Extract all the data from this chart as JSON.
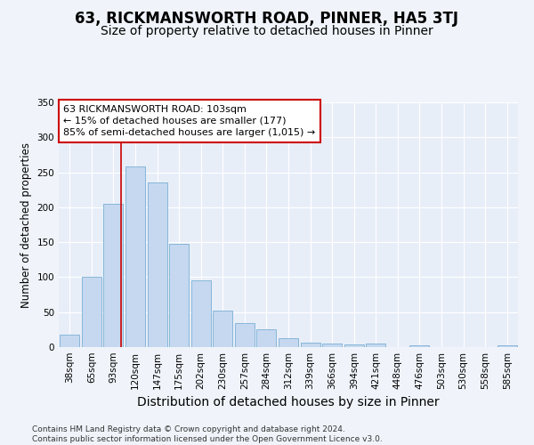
{
  "title": "63, RICKMANSWORTH ROAD, PINNER, HA5 3TJ",
  "subtitle": "Size of property relative to detached houses in Pinner",
  "xlabel": "Distribution of detached houses by size in Pinner",
  "ylabel": "Number of detached properties",
  "categories": [
    "38sqm",
    "65sqm",
    "93sqm",
    "120sqm",
    "147sqm",
    "175sqm",
    "202sqm",
    "230sqm",
    "257sqm",
    "284sqm",
    "312sqm",
    "339sqm",
    "366sqm",
    "394sqm",
    "421sqm",
    "448sqm",
    "476sqm",
    "503sqm",
    "530sqm",
    "558sqm",
    "585sqm"
  ],
  "values": [
    18,
    100,
    205,
    258,
    235,
    148,
    95,
    52,
    35,
    25,
    13,
    7,
    5,
    4,
    5,
    0,
    2,
    0,
    0,
    0,
    2
  ],
  "bar_color": "#c5d8f0",
  "bar_edge_color": "#7aafd4",
  "vline_x_index": 2,
  "vline_color": "#cc0000",
  "annotation_text": "63 RICKMANSWORTH ROAD: 103sqm\n← 15% of detached houses are smaller (177)\n85% of semi-detached houses are larger (1,015) →",
  "annotation_box_color": "#ffffff",
  "annotation_box_edge_color": "#cc0000",
  "ylim": [
    0,
    350
  ],
  "yticks": [
    0,
    50,
    100,
    150,
    200,
    250,
    300,
    350
  ],
  "background_color": "#f0f4fa",
  "plot_background_color": "#e8eef8",
  "footer": "Contains HM Land Registry data © Crown copyright and database right 2024.\nContains public sector information licensed under the Open Government Licence v3.0.",
  "title_fontsize": 12,
  "subtitle_fontsize": 10,
  "xlabel_fontsize": 10,
  "ylabel_fontsize": 8.5,
  "tick_fontsize": 7.5,
  "annotation_fontsize": 8,
  "footer_fontsize": 6.5
}
